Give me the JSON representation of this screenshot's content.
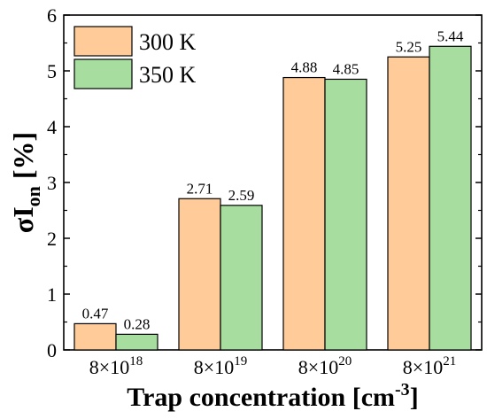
{
  "chart_data": {
    "type": "bar",
    "categories": [
      {
        "base": "8×10",
        "exp": "18"
      },
      {
        "base": "8×10",
        "exp": "19"
      },
      {
        "base": "8×10",
        "exp": "20"
      },
      {
        "base": "8×10",
        "exp": "21"
      }
    ],
    "series": [
      {
        "name": "300 K",
        "color": "#FFCC99",
        "values": [
          0.47,
          2.71,
          4.88,
          5.25
        ]
      },
      {
        "name": "350 K",
        "color": "#A8DDA0",
        "values": [
          0.28,
          2.59,
          4.85,
          5.44
        ]
      }
    ],
    "xlabel": {
      "main": "Trap concentration [cm",
      "sup": "-3",
      "end": "]"
    },
    "ylabel": {
      "sigma": "σI",
      "sub": "on",
      "end": " [%]"
    },
    "ylim": [
      0,
      6
    ],
    "yticks": [
      0,
      1,
      2,
      3,
      4,
      5,
      6
    ],
    "legend_position": "top-left",
    "grid": false
  }
}
